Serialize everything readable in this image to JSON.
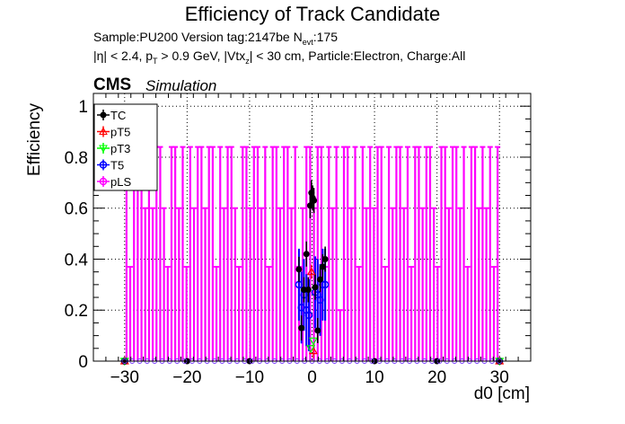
{
  "title": "Efficiency of Track Candidate",
  "subtitle1": "Sample:PU200   Version tag:2147be  N",
  "subtitle1_sub": "evt",
  "subtitle1_tail": ":175",
  "subtitle2": "|η| < 2.4, p",
  "subtitle2_sub1": "T",
  "subtitle2_mid": " > 0.9 GeV, |Vtx",
  "subtitle2_sub2": "z",
  "subtitle2_tail": "| < 30 cm, Particle:Electron, Charge:All",
  "cms_label": "CMS",
  "sim_label": "Simulation",
  "chart_data": {
    "type": "scatter",
    "xlabel": "d0 [cm]",
    "ylabel": "Efficiency",
    "xlim": [
      -35,
      35
    ],
    "ylim": [
      0,
      1.05
    ],
    "x_ticks": [
      -30,
      -20,
      -10,
      0,
      10,
      20,
      30
    ],
    "y_ticks": [
      0,
      0.2,
      0.4,
      0.6,
      0.8,
      1
    ],
    "grid": true,
    "legend_position": "top-left",
    "series": [
      {
        "name": "TC",
        "color": "#000000",
        "marker": "circle",
        "points": [
          [
            -2.1,
            0.36
          ],
          [
            -1.7,
            0.13
          ],
          [
            -1.3,
            0.28
          ],
          [
            -0.9,
            0.42
          ],
          [
            -0.6,
            0.28
          ],
          [
            -0.3,
            0.61
          ],
          [
            -0.1,
            0.66
          ],
          [
            0.1,
            0.64
          ],
          [
            0.3,
            0.63
          ],
          [
            0.5,
            0.29
          ],
          [
            0.9,
            0.12
          ],
          [
            1.3,
            0.32
          ],
          [
            1.7,
            0.37
          ],
          [
            2.1,
            0.4
          ],
          [
            -30,
            0
          ],
          [
            -20,
            0
          ],
          [
            -10,
            0
          ],
          [
            10,
            0
          ],
          [
            20,
            0
          ],
          [
            30,
            0
          ]
        ]
      },
      {
        "name": "pT5",
        "color": "#ff0000",
        "marker": "triangle-up-open",
        "points": [
          [
            -0.1,
            0.35
          ],
          [
            0.2,
            0.04
          ],
          [
            -30,
            0
          ],
          [
            30,
            0
          ]
        ]
      },
      {
        "name": "pT3",
        "color": "#00ff00",
        "marker": "triangle-down-open",
        "points": [
          [
            -0.2,
            0.05
          ],
          [
            0.2,
            0.08
          ],
          [
            -30,
            0
          ],
          [
            30,
            0
          ]
        ]
      },
      {
        "name": "T5",
        "color": "#0000ff",
        "marker": "circle-open",
        "points": [
          [
            -2.1,
            0.3
          ],
          [
            -1.7,
            0.21
          ],
          [
            -1.3,
            0.26
          ],
          [
            -0.9,
            0.2
          ],
          [
            -0.5,
            0.18
          ],
          [
            0.5,
            0.27
          ],
          [
            0.9,
            0.26
          ],
          [
            1.3,
            0.24
          ],
          [
            1.7,
            0.3
          ],
          [
            2.1,
            0.3
          ],
          [
            -30,
            0
          ],
          [
            30,
            0
          ]
        ]
      },
      {
        "name": "pLS",
        "color": "#ff00ff",
        "marker": "star-open",
        "bins_start": -30,
        "bin_width": 0.6,
        "values": [
          0.84,
          0.37,
          0.84,
          0.84,
          0.84,
          0.6,
          0.84,
          0.6,
          0.84,
          0.84,
          0.6,
          0.37,
          0.84,
          0.84,
          0.6,
          0.84,
          0.37,
          0.84,
          0.6,
          0.84,
          0.84,
          0.6,
          0.84,
          0.84,
          0.37,
          0.84,
          0.6,
          0.84,
          0.84,
          0.6,
          0.37,
          0.84,
          0.84,
          0.6,
          0.84,
          0.84,
          0.6,
          0.84,
          0.37,
          0.84,
          0.84,
          0.6,
          0.84,
          0.84,
          0.6,
          0.84,
          0.37,
          0.6,
          0.84,
          0.84,
          0.6,
          0.84,
          0.84,
          0.37,
          0.84,
          0.6,
          0.84,
          0.2,
          0.84,
          0.84,
          0.6,
          0.84,
          0.37,
          0.84,
          0.6,
          0.84,
          0.6,
          0.84,
          0.84,
          0.37,
          0.84,
          0.6,
          0.84,
          0.84,
          0.6,
          0.84,
          0.37,
          0.84,
          0.84,
          0.6,
          0.84,
          0.84,
          0.6,
          0.37,
          0.84,
          0.84,
          0.6,
          0.84,
          0.84,
          0.6,
          0.84,
          0.37,
          0.84,
          0.84,
          0.6,
          0.84,
          0.6,
          0.84,
          0.37,
          0.84
        ]
      }
    ]
  }
}
